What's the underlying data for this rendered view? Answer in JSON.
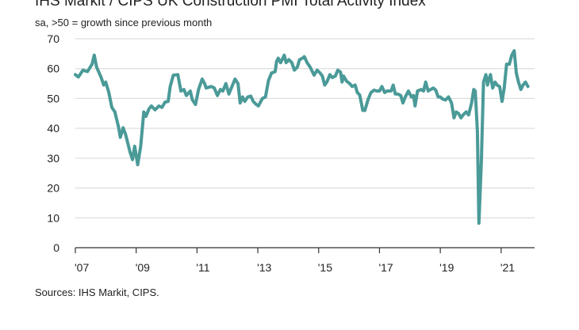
{
  "chart_data": {
    "type": "line",
    "title": "IHS Markit / CIPS UK Construction PMI Total Activity Index",
    "subtitle": "sa, >50 = growth since previous month",
    "source": "Sources: IHS Markit, CIPS.",
    "xlabel": "",
    "ylabel": "",
    "ylim": [
      0,
      70
    ],
    "yticks": [
      0,
      10,
      20,
      30,
      40,
      50,
      60,
      70
    ],
    "xlim": [
      2007.0,
      2022.1
    ],
    "xticks": [
      {
        "value": 2007,
        "label": "'07"
      },
      {
        "value": 2009,
        "label": "'09"
      },
      {
        "value": 2011,
        "label": "'11"
      },
      {
        "value": 2013,
        "label": "'13"
      },
      {
        "value": 2015,
        "label": "'15"
      },
      {
        "value": 2017,
        "label": "'17"
      },
      {
        "value": 2019,
        "label": "'19"
      },
      {
        "value": 2021,
        "label": "'21"
      }
    ],
    "grid": true,
    "series": [
      {
        "name": "UK Construction PMI Total Activity Index",
        "color": "#4a9a98",
        "points": [
          [
            2007.0,
            58.0
          ],
          [
            2007.1,
            57.2
          ],
          [
            2007.25,
            59.5
          ],
          [
            2007.4,
            59.0
          ],
          [
            2007.55,
            61.5
          ],
          [
            2007.62,
            64.5
          ],
          [
            2007.7,
            60.5
          ],
          [
            2007.85,
            57.0
          ],
          [
            2007.93,
            54.5
          ],
          [
            2008.0,
            55.5
          ],
          [
            2008.1,
            52.0
          ],
          [
            2008.2,
            47.0
          ],
          [
            2008.3,
            45.5
          ],
          [
            2008.42,
            40.5
          ],
          [
            2008.48,
            37.0
          ],
          [
            2008.57,
            40.2
          ],
          [
            2008.65,
            38.0
          ],
          [
            2008.8,
            32.0
          ],
          [
            2008.88,
            29.5
          ],
          [
            2008.95,
            34.0
          ],
          [
            2009.0,
            31.0
          ],
          [
            2009.05,
            27.8
          ],
          [
            2009.15,
            34.0
          ],
          [
            2009.25,
            45.5
          ],
          [
            2009.32,
            44.0
          ],
          [
            2009.42,
            46.5
          ],
          [
            2009.5,
            47.5
          ],
          [
            2009.62,
            46.2
          ],
          [
            2009.75,
            47.5
          ],
          [
            2009.85,
            47.0
          ],
          [
            2009.95,
            48.8
          ],
          [
            2010.05,
            49.0
          ],
          [
            2010.12,
            54.0
          ],
          [
            2010.22,
            57.8
          ],
          [
            2010.37,
            58.0
          ],
          [
            2010.47,
            52.5
          ],
          [
            2010.57,
            53.0
          ],
          [
            2010.65,
            51.0
          ],
          [
            2010.78,
            52.5
          ],
          [
            2010.85,
            49.5
          ],
          [
            2010.95,
            48.0
          ],
          [
            2011.05,
            53.0
          ],
          [
            2011.17,
            56.5
          ],
          [
            2011.25,
            55.0
          ],
          [
            2011.3,
            53.5
          ],
          [
            2011.47,
            54.0
          ],
          [
            2011.57,
            53.5
          ],
          [
            2011.67,
            51.0
          ],
          [
            2011.77,
            53.0
          ],
          [
            2011.85,
            52.5
          ],
          [
            2011.95,
            55.0
          ],
          [
            2012.05,
            51.5
          ],
          [
            2012.17,
            54.5
          ],
          [
            2012.25,
            56.5
          ],
          [
            2012.35,
            55.0
          ],
          [
            2012.42,
            48.5
          ],
          [
            2012.5,
            50.5
          ],
          [
            2012.57,
            49.0
          ],
          [
            2012.67,
            50.5
          ],
          [
            2012.77,
            50.8
          ],
          [
            2012.85,
            49.0
          ],
          [
            2012.95,
            48.0
          ],
          [
            2013.02,
            47.5
          ],
          [
            2013.15,
            50.0
          ],
          [
            2013.25,
            50.5
          ],
          [
            2013.35,
            56.0
          ],
          [
            2013.45,
            58.5
          ],
          [
            2013.57,
            59.0
          ],
          [
            2013.62,
            62.5
          ],
          [
            2013.67,
            63.5
          ],
          [
            2013.75,
            62.0
          ],
          [
            2013.87,
            64.5
          ],
          [
            2013.93,
            62.0
          ],
          [
            2014.02,
            63.0
          ],
          [
            2014.12,
            62.0
          ],
          [
            2014.2,
            59.5
          ],
          [
            2014.3,
            60.5
          ],
          [
            2014.37,
            63.0
          ],
          [
            2014.47,
            63.5
          ],
          [
            2014.53,
            64.0
          ],
          [
            2014.62,
            62.0
          ],
          [
            2014.72,
            60.5
          ],
          [
            2014.85,
            57.8
          ],
          [
            2014.95,
            59.5
          ],
          [
            2015.05,
            58.5
          ],
          [
            2015.12,
            57.5
          ],
          [
            2015.2,
            54.5
          ],
          [
            2015.27,
            55.5
          ],
          [
            2015.37,
            58.0
          ],
          [
            2015.45,
            57.0
          ],
          [
            2015.55,
            57.5
          ],
          [
            2015.63,
            59.5
          ],
          [
            2015.72,
            58.8
          ],
          [
            2015.77,
            55.5
          ],
          [
            2015.82,
            57.5
          ],
          [
            2015.92,
            55.8
          ],
          [
            2016.02,
            55.0
          ],
          [
            2016.1,
            54.0
          ],
          [
            2016.2,
            54.5
          ],
          [
            2016.27,
            52.0
          ],
          [
            2016.35,
            51.2
          ],
          [
            2016.45,
            46.0
          ],
          [
            2016.52,
            46.0
          ],
          [
            2016.62,
            49.5
          ],
          [
            2016.72,
            52.0
          ],
          [
            2016.82,
            52.8
          ],
          [
            2016.92,
            52.5
          ],
          [
            2017.0,
            52.5
          ],
          [
            2017.08,
            54.0
          ],
          [
            2017.17,
            52.0
          ],
          [
            2017.25,
            52.5
          ],
          [
            2017.38,
            52.5
          ],
          [
            2017.45,
            54.5
          ],
          [
            2017.52,
            51.5
          ],
          [
            2017.6,
            51.5
          ],
          [
            2017.7,
            51.0
          ],
          [
            2017.77,
            48.5
          ],
          [
            2017.85,
            50.5
          ],
          [
            2017.95,
            52.5
          ],
          [
            2018.05,
            50.5
          ],
          [
            2018.12,
            51.0
          ],
          [
            2018.17,
            47.5
          ],
          [
            2018.25,
            52.5
          ],
          [
            2018.37,
            53.0
          ],
          [
            2018.45,
            52.5
          ],
          [
            2018.52,
            55.5
          ],
          [
            2018.6,
            52.5
          ],
          [
            2018.68,
            53.0
          ],
          [
            2018.77,
            53.5
          ],
          [
            2018.85,
            52.8
          ],
          [
            2018.93,
            50.5
          ],
          [
            2019.0,
            50.5
          ],
          [
            2019.08,
            49.8
          ],
          [
            2019.17,
            49.5
          ],
          [
            2019.27,
            50.5
          ],
          [
            2019.37,
            48.5
          ],
          [
            2019.45,
            43.5
          ],
          [
            2019.52,
            45.5
          ],
          [
            2019.6,
            45.0
          ],
          [
            2019.68,
            43.5
          ],
          [
            2019.75,
            44.5
          ],
          [
            2019.85,
            45.5
          ],
          [
            2019.93,
            44.5
          ],
          [
            2020.03,
            48.5
          ],
          [
            2020.1,
            53.0
          ],
          [
            2020.15,
            52.5
          ],
          [
            2020.22,
            39.0
          ],
          [
            2020.27,
            8.2
          ],
          [
            2020.35,
            28.9
          ],
          [
            2020.42,
            55.5
          ],
          [
            2020.5,
            58.0
          ],
          [
            2020.55,
            54.5
          ],
          [
            2020.6,
            56.5
          ],
          [
            2020.65,
            58.0
          ],
          [
            2020.72,
            53.5
          ],
          [
            2020.8,
            55.5
          ],
          [
            2020.87,
            54.5
          ],
          [
            2020.95,
            54.0
          ],
          [
            2021.03,
            49.0
          ],
          [
            2021.1,
            53.5
          ],
          [
            2021.18,
            61.5
          ],
          [
            2021.27,
            61.5
          ],
          [
            2021.35,
            64.5
          ],
          [
            2021.43,
            66.0
          ],
          [
            2021.5,
            58.5
          ],
          [
            2021.57,
            55.5
          ],
          [
            2021.65,
            53.0
          ],
          [
            2021.72,
            54.5
          ],
          [
            2021.8,
            55.5
          ],
          [
            2021.88,
            54.0
          ]
        ]
      }
    ]
  }
}
